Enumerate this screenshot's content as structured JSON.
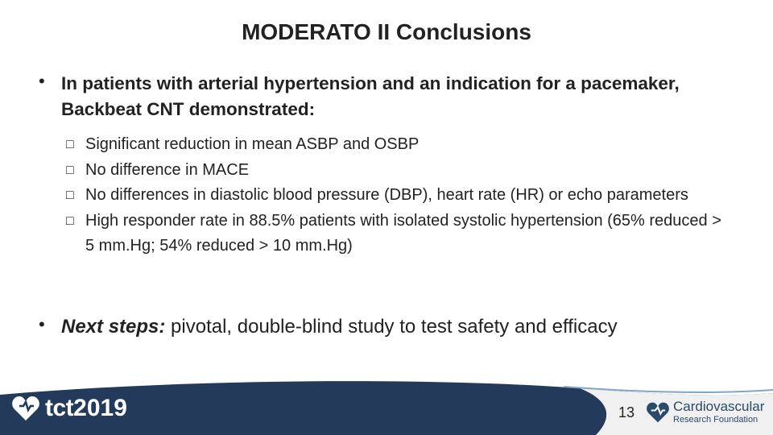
{
  "slide": {
    "title": "MODERATO II Conclusions",
    "bullet1": {
      "text": "In patients with arterial hypertension and an indication for a pacemaker, Backbeat CNT demonstrated:",
      "subs": [
        "Significant reduction in mean ASBP and OSBP",
        "No difference in MACE",
        "No differences in diastolic blood pressure (DBP), heart rate (HR) or echo parameters",
        "High responder rate in 88.5% patients with isolated systolic hypertension (65% reduced > 5 mm.Hg; 54% reduced > 10 mm.Hg)"
      ]
    },
    "bullet2": {
      "lead": "Next steps:",
      "text": " pivotal, double-blind study to test safety and efficacy"
    },
    "bullet_glyph": "•",
    "sub_glyph": "□"
  },
  "footer": {
    "logo_text": "tct",
    "logo_year": "2019",
    "page_number": "13",
    "sponsor_name": "Cardiovascular",
    "sponsor_sub": "Research Foundation",
    "colors": {
      "band": "#233a5a",
      "accent": "#7fa6c8"
    }
  }
}
